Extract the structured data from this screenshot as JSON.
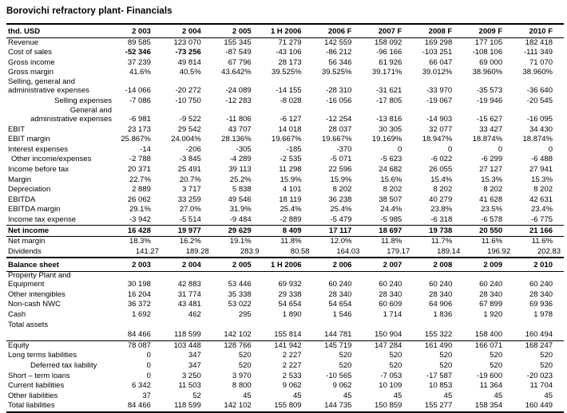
{
  "title": "Borovichi refractory plant-  Financials",
  "income_statement": {
    "columns": [
      "thd. USD",
      "2 003",
      "2 004",
      "2 005",
      "1 H 2006",
      "2006 F",
      "2007 F",
      "2008 F",
      "2009 F",
      "2010 F"
    ],
    "rows": [
      {
        "label": "Revenue",
        "values": [
          "89 585",
          "123 070",
          "155 345",
          "71 279",
          "142 559",
          "158 092",
          "169 298",
          "177 105",
          "182 418"
        ]
      },
      {
        "label": "Cost of sales",
        "bold_values": [
          0,
          1
        ],
        "values": [
          "-52 346",
          "-73 256",
          "-87 549",
          "-43 106",
          "-86 212",
          "-96 166",
          "-103 251",
          "-108 106",
          "-111 349"
        ]
      },
      {
        "label": "Gross income",
        "values": [
          "37 239",
          "49 814",
          "67 796",
          "28 173",
          "56 346",
          "61 926",
          "66 047",
          "69 000",
          "71 070"
        ]
      },
      {
        "label": "Gross margin",
        "values": [
          "41.6%",
          "40.5%",
          "43.642%",
          "39.525%",
          "39.525%",
          "39.171%",
          "39.012%",
          "38.960%",
          "38.960%"
        ]
      },
      {
        "label": "Selling, general and\nadministrative expenses",
        "two_line": true,
        "values": [
          "-14 066",
          "-20 272",
          "-24 089",
          "-14 155",
          "-28 310",
          "-31 621",
          "-33 970",
          "-35 573",
          "-36 640"
        ]
      },
      {
        "label": "Selling expenses",
        "align": "right",
        "values": [
          "-7 086",
          "-10 750",
          "-12 283",
          "-8 028",
          "-16 056",
          "-17 805",
          "-19 067",
          "-19 946",
          "-20 545"
        ]
      },
      {
        "label": "General and\nadministrative expenses",
        "two_line": true,
        "align": "right",
        "values": [
          "-6 981",
          "-9 522",
          "-11 806",
          "-6 127",
          "-12 254",
          "-13 816",
          "-14 903",
          "-15 627",
          "-16 095"
        ]
      },
      {
        "label": "EBIT",
        "values": [
          "23 173",
          "29 542",
          "43 707",
          "14 018",
          "28 037",
          "30 305",
          "32 077",
          "33 427",
          "34 430"
        ]
      },
      {
        "label": "EBIT margin",
        "values": [
          "25.867%",
          "24.004%",
          "28.136%",
          "19.667%",
          "19.667%",
          "19.169%",
          "18.947%",
          "18.874%",
          "18.874%"
        ]
      },
      {
        "label": "Interest expenses",
        "values": [
          "-14",
          "-206",
          "-305",
          "-185",
          "-370",
          "0",
          "0",
          "0",
          "0"
        ]
      },
      {
        "label": "Other income/expenses",
        "indent": 6,
        "values": [
          "-2 788",
          "-3 845",
          "-4 289",
          "-2 535",
          "-5 071",
          "-5 623",
          "-6 022",
          "-6 299",
          "-6 488"
        ]
      },
      {
        "label": "Income before tax",
        "values": [
          "20 371",
          "25 491",
          "39 113",
          "11 298",
          "22 596",
          "24 682",
          "26 055",
          "27 127",
          "27 941"
        ]
      },
      {
        "label": "Margin",
        "values": [
          "22.7%",
          "20.7%",
          "25.2%",
          "15.9%",
          "15.9%",
          "15.6%",
          "15.4%",
          "15.3%",
          "15.3%"
        ]
      },
      {
        "label": "Depreciation",
        "values": [
          "2 889",
          "3 717",
          "5 838",
          "4 101",
          "8 202",
          "8 202",
          "8 202",
          "8 202",
          "8 202"
        ]
      },
      {
        "label": "EBITDA",
        "values": [
          "26 062",
          "33 259",
          "49 546",
          "18 119",
          "36 238",
          "38 507",
          "40 279",
          "41 628",
          "42 631"
        ]
      },
      {
        "label": "EBITDA margin",
        "values": [
          "29.1%",
          "27.0%",
          "31.9%",
          "25.4%",
          "25.4%",
          "24.4%",
          "23.8%",
          "23.5%",
          "23.4%"
        ]
      },
      {
        "label": "Income tax expense",
        "values": [
          "-3 942",
          "-5 514",
          "-9 484",
          "-2 889",
          "-5 479",
          "-5 985",
          "-6 318",
          "-6 578",
          "-6 775"
        ]
      },
      {
        "label": "Net income",
        "bold": true,
        "border_top": true,
        "border_bottom": true,
        "values": [
          "16 428",
          "19 977",
          "29 629",
          "8 409",
          "17 117",
          "18 697",
          "19 738",
          "20 550",
          "21 166"
        ]
      },
      {
        "label": "Net margin",
        "values": [
          "18.3%",
          "16.2%",
          "19.1%",
          "11.8%",
          "12.0%",
          "11.8%",
          "11.7%",
          "11.6%",
          "11.6%"
        ]
      },
      {
        "label": "Dividends",
        "tight": true,
        "values": [
          "141.27",
          "189.28",
          "283.9",
          "80.58",
          "164.03",
          "179.17",
          "189.14",
          "196.92",
          "202.83"
        ]
      }
    ]
  },
  "balance_sheet": {
    "columns": [
      "Balance sheet",
      "2 003",
      "2 004",
      "2 005",
      "1 H 2006",
      "2 006",
      "2 007",
      "2 008",
      "2 009",
      "2 010"
    ],
    "rows": [
      {
        "label": "Property Plant and\nEquipment",
        "two_line": true,
        "values": [
          "30 198",
          "42 883",
          "53 446",
          "69 932",
          "60 240",
          "60 240",
          "60 240",
          "60 240",
          "60 240"
        ]
      },
      {
        "label": "Other intengibles",
        "values": [
          "16 204",
          "31 774",
          "35 338",
          "29 338",
          "28 340",
          "28 340",
          "28 340",
          "28 340",
          "28 340"
        ]
      },
      {
        "label": "Non-cash NWC",
        "values": [
          "36 372",
          "43 481",
          "53 022",
          "54 654",
          "54 654",
          "60 609",
          "64 906",
          "67 899",
          "69 936"
        ]
      },
      {
        "label": "Cash",
        "values": [
          "1 692",
          "462",
          "295",
          "1 890",
          "1 546",
          "1 714",
          "1 836",
          "1 920",
          "1 978"
        ]
      },
      {
        "label": "Total assets",
        "values": [
          "",
          "",
          "",
          "",
          "",
          "",
          "",
          "",
          ""
        ]
      },
      {
        "label": "",
        "border_bottom": true,
        "values": [
          "84 466",
          "118 599",
          "142 102",
          "155 814",
          "144 781",
          "150 904",
          "155 322",
          "158 400",
          "160 494"
        ]
      },
      {
        "label": "Equity",
        "values": [
          "78 087",
          "103 448",
          "128 766",
          "141 942",
          "145 719",
          "147 284",
          "161 490",
          "166 071",
          "168 247"
        ]
      },
      {
        "label": "Long terms liabilities",
        "values": [
          "0",
          "347",
          "520",
          "2 227",
          "520",
          "520",
          "520",
          "520",
          "520"
        ]
      },
      {
        "label": "Deferred tax liability",
        "indent": 30,
        "values": [
          "0",
          "347",
          "520",
          "2 227",
          "520",
          "520",
          "520",
          "520",
          "520"
        ]
      },
      {
        "label": "Short – term loans",
        "values": [
          "0",
          "3 250",
          "3 970",
          "2 533",
          "-10 565",
          "-7 053",
          "-17 587",
          "-19 600",
          "-20 023"
        ]
      },
      {
        "label": "Current liabilities",
        "values": [
          "6 342",
          "11 503",
          "8 800",
          "9 062",
          "9 062",
          "10 109",
          "10 853",
          "11 364",
          "11 704"
        ]
      },
      {
        "label": "Other liabilities",
        "values": [
          "37",
          "52",
          "45",
          "45",
          "45",
          "45",
          "45",
          "45",
          "45"
        ]
      },
      {
        "label": "Total liabilities",
        "border_bottom_thick": true,
        "values": [
          "84 466",
          "118 599",
          "142 102",
          "155 809",
          "144 735",
          "150 859",
          "155 277",
          "158 354",
          "160 449"
        ]
      }
    ]
  }
}
